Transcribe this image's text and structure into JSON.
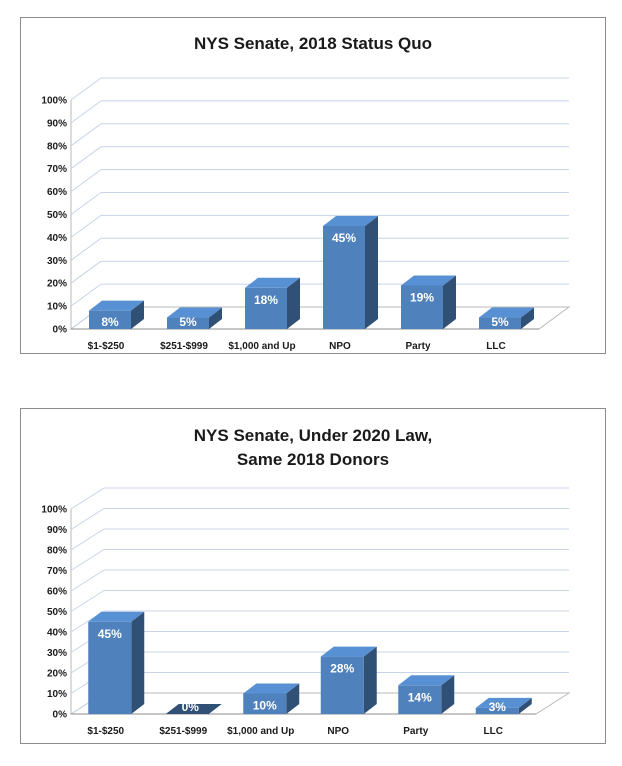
{
  "chart_data": [
    {
      "type": "bar",
      "title_lines": [
        "NYS Senate, 2018 Status Quo"
      ],
      "categories": [
        "$1-$250",
        "$251-$999",
        "$1,000 and Up",
        "NPO",
        "Party",
        "LLC"
      ],
      "values": [
        8,
        5,
        18,
        45,
        19,
        5
      ],
      "data_labels": [
        "8%",
        "5%",
        "18%",
        "45%",
        "19%",
        "5%"
      ],
      "ylim": [
        0,
        100
      ],
      "ytick_labels": [
        "0%",
        "10%",
        "20%",
        "30%",
        "40%",
        "50%",
        "60%",
        "70%",
        "80%",
        "90%",
        "100%"
      ],
      "grid": true,
      "style": "3d-column",
      "bar_color": "#4f81bd"
    },
    {
      "type": "bar",
      "title_lines": [
        "NYS Senate, Under 2020 Law,",
        "Same 2018 Donors"
      ],
      "categories": [
        "$1-$250",
        "$251-$999",
        "$1,000 and Up",
        "NPO",
        "Party",
        "LLC"
      ],
      "values": [
        45,
        0,
        10,
        28,
        14,
        3
      ],
      "data_labels": [
        "45%",
        "0%",
        "10%",
        "28%",
        "14%",
        "3%"
      ],
      "ylim": [
        0,
        100
      ],
      "ytick_labels": [
        "0%",
        "10%",
        "20%",
        "30%",
        "40%",
        "50%",
        "60%",
        "70%",
        "80%",
        "90%",
        "100%"
      ],
      "grid": true,
      "style": "3d-column",
      "bar_color": "#4f81bd"
    }
  ]
}
